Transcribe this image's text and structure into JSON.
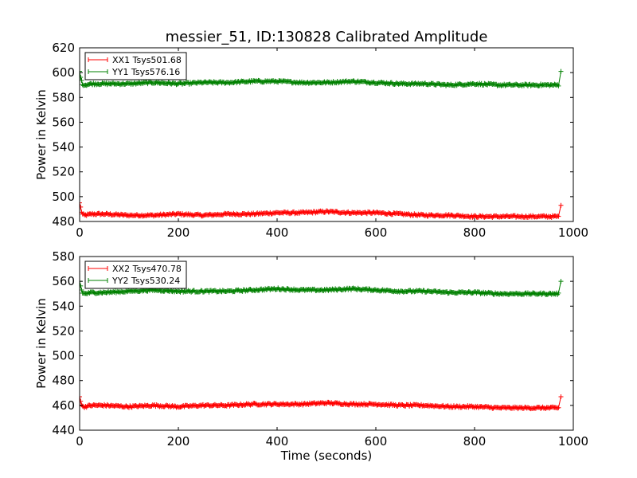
{
  "chart_data": [
    {
      "type": "line",
      "title": "messier_51, ID:130828 Calibrated Amplitude",
      "xlabel": "",
      "ylabel": "Power in Kelvin",
      "xlim": [
        0,
        1000
      ],
      "ylim": [
        480,
        620
      ],
      "xticks": [
        0,
        200,
        400,
        600,
        800,
        1000
      ],
      "yticks": [
        480,
        500,
        520,
        540,
        560,
        580,
        600,
        620
      ],
      "grid": false,
      "legend": "top-left",
      "marker": "plus",
      "series": [
        {
          "name": "XX1 Tsys501.68",
          "color": "#ff0000",
          "x": [
            0,
            5,
            10,
            25,
            50,
            100,
            150,
            200,
            250,
            300,
            350,
            400,
            450,
            500,
            550,
            600,
            650,
            700,
            750,
            800,
            850,
            900,
            950,
            970,
            975
          ],
          "y": [
            495,
            486,
            485,
            486,
            486,
            485,
            485,
            486,
            485,
            486,
            486,
            487,
            487,
            488,
            487,
            487,
            486,
            485,
            485,
            484,
            484,
            484,
            484,
            484,
            493
          ]
        },
        {
          "name": "YY1 Tsys576.16",
          "color": "#008000",
          "x": [
            0,
            5,
            10,
            25,
            50,
            100,
            150,
            200,
            250,
            300,
            350,
            400,
            450,
            500,
            550,
            600,
            650,
            700,
            750,
            800,
            850,
            900,
            950,
            970,
            975
          ],
          "y": [
            601,
            591,
            590,
            591,
            591,
            591,
            592,
            591,
            592,
            592,
            593,
            593,
            592,
            592,
            593,
            592,
            591,
            591,
            590,
            591,
            590,
            590,
            590,
            590,
            601
          ]
        }
      ]
    },
    {
      "type": "line",
      "title": "",
      "xlabel": "Time (seconds)",
      "ylabel": "Power in Kelvin",
      "xlim": [
        0,
        1000
      ],
      "ylim": [
        440,
        580
      ],
      "xticks": [
        0,
        200,
        400,
        600,
        800,
        1000
      ],
      "yticks": [
        440,
        460,
        480,
        500,
        520,
        540,
        560,
        580
      ],
      "grid": false,
      "legend": "top-left",
      "marker": "plus",
      "series": [
        {
          "name": "XX2 Tsys470.78",
          "color": "#ff0000",
          "x": [
            0,
            5,
            10,
            25,
            50,
            100,
            150,
            200,
            250,
            300,
            350,
            400,
            450,
            500,
            550,
            600,
            650,
            700,
            750,
            800,
            850,
            900,
            950,
            970,
            975
          ],
          "y": [
            467,
            459,
            459,
            460,
            460,
            459,
            460,
            459,
            460,
            460,
            461,
            461,
            461,
            462,
            461,
            461,
            460,
            460,
            459,
            459,
            458,
            458,
            458,
            458,
            467
          ]
        },
        {
          "name": "YY2 Tsys530.24",
          "color": "#008000",
          "x": [
            0,
            5,
            10,
            25,
            50,
            100,
            150,
            200,
            250,
            300,
            350,
            400,
            450,
            500,
            550,
            600,
            650,
            700,
            750,
            800,
            850,
            900,
            950,
            970,
            975
          ],
          "y": [
            560,
            551,
            550,
            551,
            551,
            552,
            553,
            552,
            552,
            552,
            553,
            554,
            553,
            553,
            554,
            553,
            552,
            552,
            551,
            551,
            550,
            550,
            550,
            550,
            560
          ]
        }
      ]
    }
  ]
}
